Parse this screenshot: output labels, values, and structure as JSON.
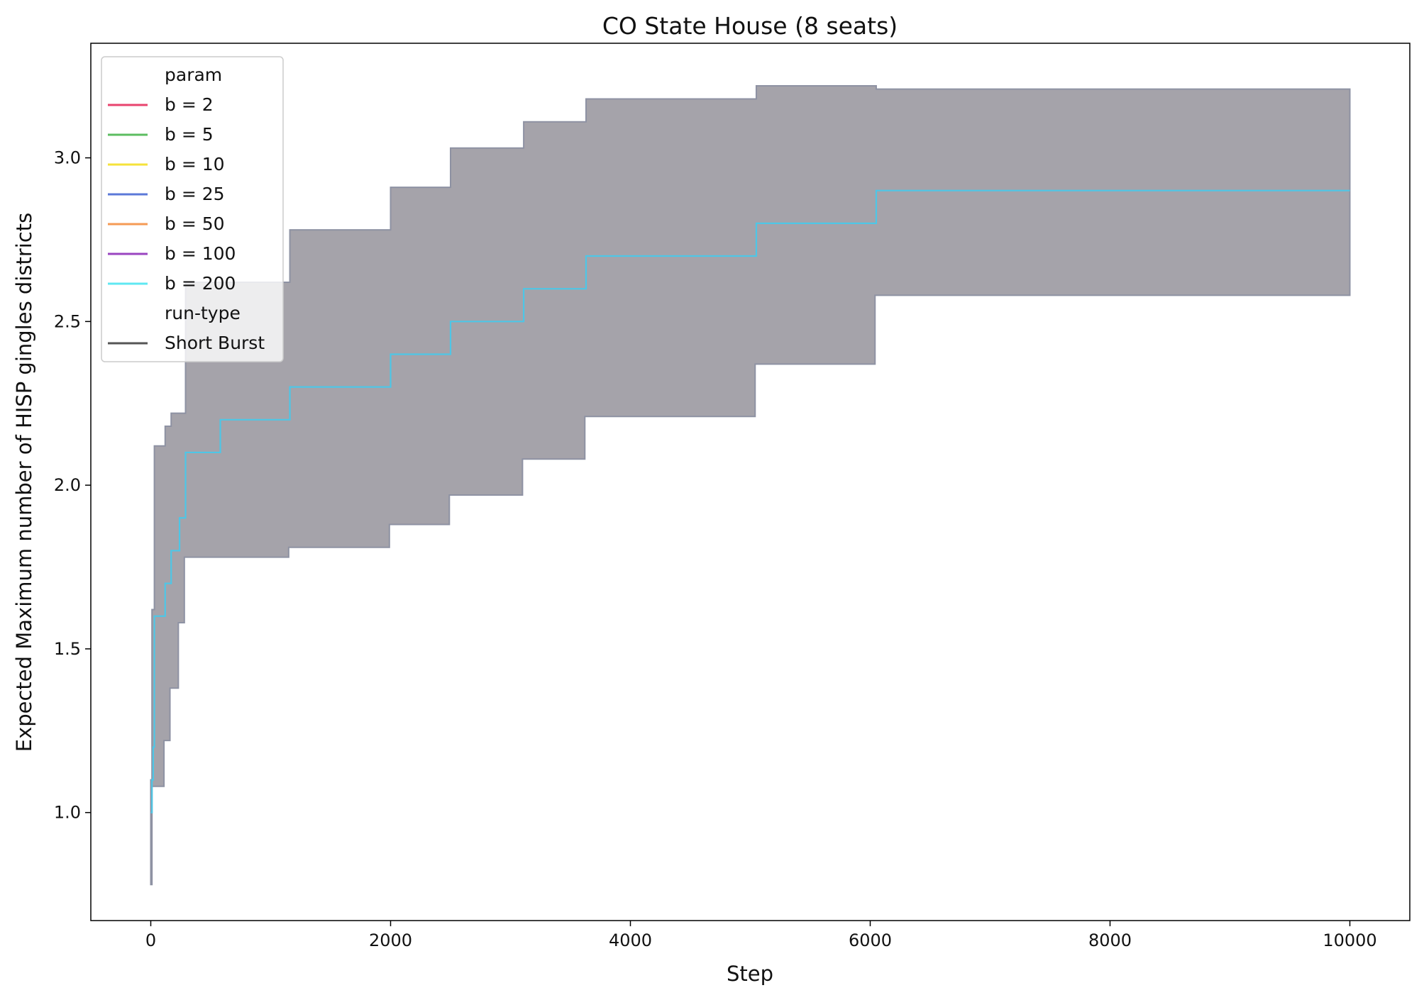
{
  "chart_data": {
    "type": "line",
    "title": "CO State House (8 seats)",
    "xlabel": "Step",
    "ylabel": "Expected Maximum number of HISP gingles districts",
    "xlim": [
      -500,
      10500
    ],
    "ylim": [
      0.67,
      3.35
    ],
    "xticks": [
      0,
      2000,
      4000,
      6000,
      8000,
      10000
    ],
    "xtick_labels": [
      "0",
      "2000",
      "4000",
      "6000",
      "8000",
      "10000"
    ],
    "yticks": [
      1.0,
      1.5,
      2.0,
      2.5,
      3.0
    ],
    "ytick_labels": [
      "1.0",
      "1.5",
      "2.0",
      "2.5",
      "3.0"
    ],
    "grid": false,
    "legend": {
      "placement": "top-left",
      "groups": [
        {
          "title": "param",
          "entries": [
            {
              "label": "b = 2",
              "color": "#e8436e"
            },
            {
              "label": "b = 5",
              "color": "#5cbd60"
            },
            {
              "label": "b = 10",
              "color": "#f5e23a"
            },
            {
              "label": "b = 25",
              "color": "#5b78d8"
            },
            {
              "label": "b = 50",
              "color": "#f59a55"
            },
            {
              "label": "b = 100",
              "color": "#9a45c0"
            },
            {
              "label": "b = 200",
              "color": "#5fe8f2"
            }
          ]
        },
        {
          "title": "run-type",
          "entries": [
            {
              "label": "Short Burst",
              "color": "#555555"
            }
          ]
        }
      ]
    },
    "series": [
      {
        "name": "b = 200",
        "color": "#4ec6e6",
        "points": [
          [
            0,
            1.0
          ],
          [
            10,
            1.1
          ],
          [
            20,
            1.2
          ],
          [
            30,
            1.6
          ],
          [
            110,
            1.6
          ],
          [
            120,
            1.7
          ],
          [
            160,
            1.7
          ],
          [
            170,
            1.8
          ],
          [
            230,
            1.8
          ],
          [
            240,
            1.9
          ],
          [
            280,
            1.9
          ],
          [
            290,
            2.1
          ],
          [
            570,
            2.1
          ],
          [
            580,
            2.2
          ],
          [
            1150,
            2.2
          ],
          [
            1160,
            2.3
          ],
          [
            1990,
            2.3
          ],
          [
            2000,
            2.4
          ],
          [
            2490,
            2.4
          ],
          [
            2500,
            2.5
          ],
          [
            3100,
            2.5
          ],
          [
            3110,
            2.6
          ],
          [
            3620,
            2.6
          ],
          [
            3630,
            2.7
          ],
          [
            5040,
            2.7
          ],
          [
            5050,
            2.8
          ],
          [
            6040,
            2.8
          ],
          [
            6050,
            2.9
          ],
          [
            10000,
            2.9
          ]
        ],
        "band": {
          "color": "#a5a3aa",
          "upper": [
            [
              0,
              1.1
            ],
            [
              10,
              1.62
            ],
            [
              30,
              2.12
            ],
            [
              110,
              2.12
            ],
            [
              120,
              2.18
            ],
            [
              160,
              2.18
            ],
            [
              170,
              2.22
            ],
            [
              260,
              2.22
            ],
            [
              280,
              2.22
            ],
            [
              290,
              2.62
            ],
            [
              580,
              2.62
            ],
            [
              1150,
              2.62
            ],
            [
              1160,
              2.78
            ],
            [
              1990,
              2.78
            ],
            [
              2000,
              2.91
            ],
            [
              2490,
              2.91
            ],
            [
              2500,
              3.03
            ],
            [
              3100,
              3.03
            ],
            [
              3110,
              3.11
            ],
            [
              3620,
              3.11
            ],
            [
              3630,
              3.18
            ],
            [
              5040,
              3.18
            ],
            [
              5050,
              3.22
            ],
            [
              6040,
              3.22
            ],
            [
              6050,
              3.21
            ],
            [
              10000,
              3.21
            ]
          ],
          "lower": [
            [
              0,
              0.99
            ],
            [
              10,
              0.78
            ],
            [
              20,
              1.08
            ],
            [
              110,
              1.08
            ],
            [
              120,
              1.22
            ],
            [
              160,
              1.22
            ],
            [
              170,
              1.38
            ],
            [
              230,
              1.38
            ],
            [
              240,
              1.58
            ],
            [
              280,
              1.58
            ],
            [
              290,
              1.78
            ],
            [
              570,
              1.78
            ],
            [
              580,
              1.78
            ],
            [
              1150,
              1.78
            ],
            [
              1160,
              1.81
            ],
            [
              1990,
              1.81
            ],
            [
              2000,
              1.88
            ],
            [
              2490,
              1.88
            ],
            [
              2500,
              1.97
            ],
            [
              3100,
              1.97
            ],
            [
              3110,
              2.08
            ],
            [
              3620,
              2.08
            ],
            [
              3630,
              2.21
            ],
            [
              5040,
              2.21
            ],
            [
              5050,
              2.37
            ],
            [
              6040,
              2.37
            ],
            [
              6050,
              2.58
            ],
            [
              10000,
              2.58
            ]
          ]
        }
      }
    ]
  }
}
